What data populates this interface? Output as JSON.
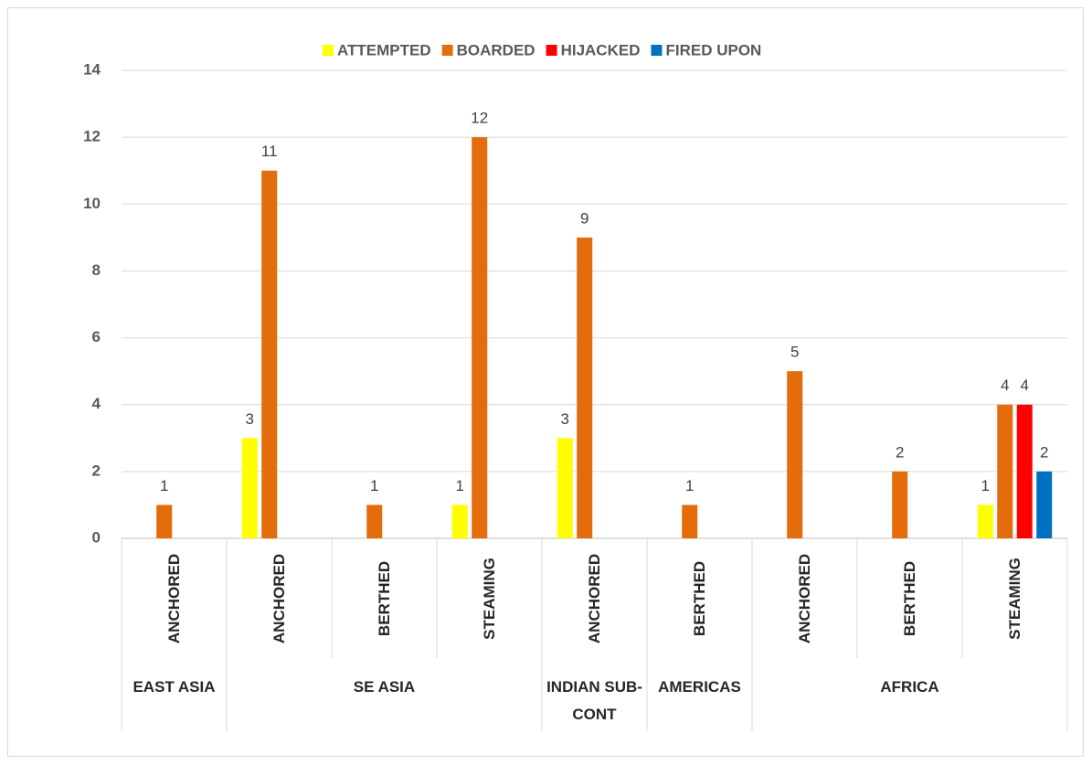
{
  "chart_data": {
    "type": "bar",
    "groups": [
      {
        "name": "EAST ASIA",
        "categories": [
          "ANCHORED"
        ]
      },
      {
        "name": "SE ASIA",
        "categories": [
          "ANCHORED",
          "BERTHED",
          "STEAMING"
        ]
      },
      {
        "name": "INDIAN SUB-CONT",
        "categories": [
          "ANCHORED"
        ]
      },
      {
        "name": "AMERICAS",
        "categories": [
          "BERTHED"
        ]
      },
      {
        "name": "AFRICA",
        "categories": [
          "ANCHORED",
          "BERTHED",
          "STEAMING"
        ]
      }
    ],
    "series": [
      {
        "name": "ATTEMPTED",
        "color": "#ffff00",
        "values": [
          0,
          3,
          0,
          1,
          3,
          0,
          0,
          0,
          1
        ]
      },
      {
        "name": "BOARDED",
        "color": "#e46c0a",
        "values": [
          1,
          11,
          1,
          12,
          9,
          1,
          5,
          2,
          4
        ]
      },
      {
        "name": "HIJACKED",
        "color": "#ff0000",
        "values": [
          0,
          0,
          0,
          0,
          0,
          0,
          0,
          0,
          4
        ]
      },
      {
        "name": "FIRED UPON",
        "color": "#0070c0",
        "values": [
          0,
          0,
          0,
          0,
          0,
          0,
          0,
          0,
          2
        ]
      }
    ],
    "ylim": [
      0,
      14
    ],
    "yticks": [
      0,
      2,
      4,
      6,
      8,
      10,
      12,
      14
    ],
    "grid": true,
    "legend": "top"
  }
}
